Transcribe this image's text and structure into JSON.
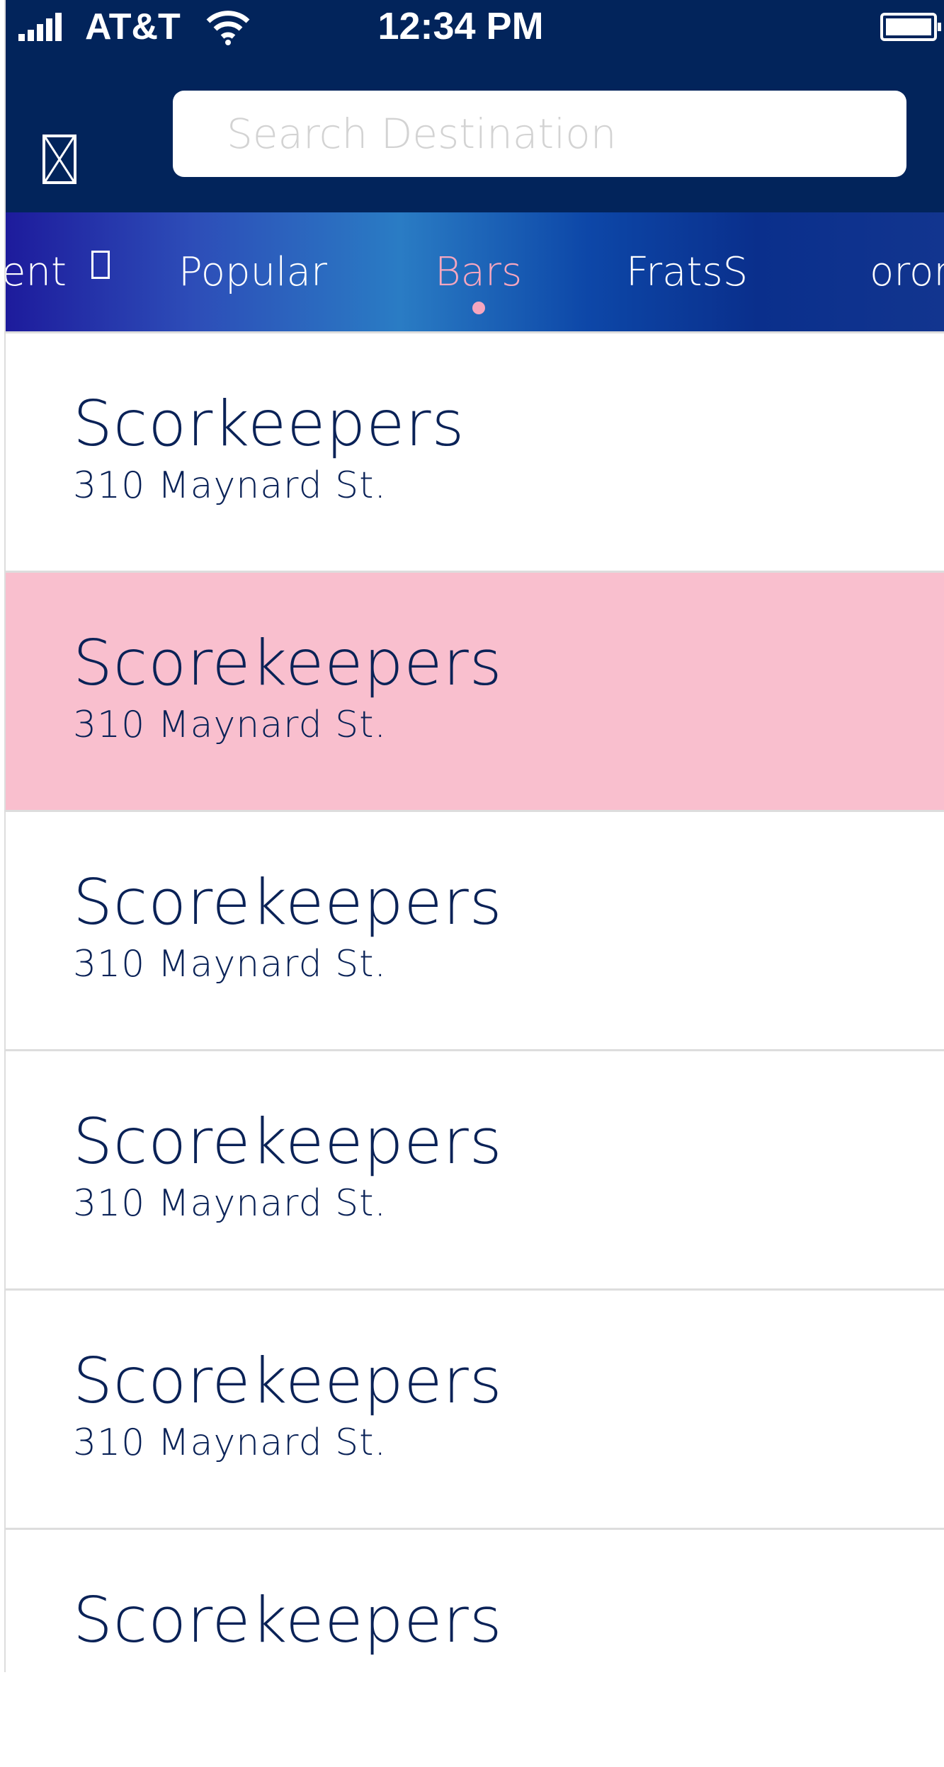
{
  "status_bar": {
    "carrier": "AT&T",
    "time": "12:34 PM",
    "signal_bars": 5,
    "battery_level": 1.0
  },
  "header": {
    "menu_icon": "placeholder-box-icon",
    "search": {
      "placeholder": "Search Destination",
      "value": ""
    }
  },
  "tabs": {
    "items": [
      {
        "label": "ent"
      },
      {
        "label": "Popular"
      },
      {
        "label": "Bars"
      },
      {
        "label": "FratsS"
      },
      {
        "label": "oror"
      }
    ],
    "active": "Bars",
    "active_color": "#f5a6bf"
  },
  "list": {
    "items": [
      {
        "name": "Scorkeepers",
        "address": "310 Maynard St."
      },
      {
        "name": "Scorekeepers",
        "address": "310 Maynard St.",
        "highlighted": true
      },
      {
        "name": "Scorekeepers",
        "address": "310 Maynard St."
      },
      {
        "name": "Scorekeepers",
        "address": "310 Maynard St."
      },
      {
        "name": "Scorekeepers",
        "address": "310 Maynard St."
      },
      {
        "name": "Scorekeepers",
        "address": ""
      }
    ],
    "highlight_color": "#f9bfce"
  }
}
